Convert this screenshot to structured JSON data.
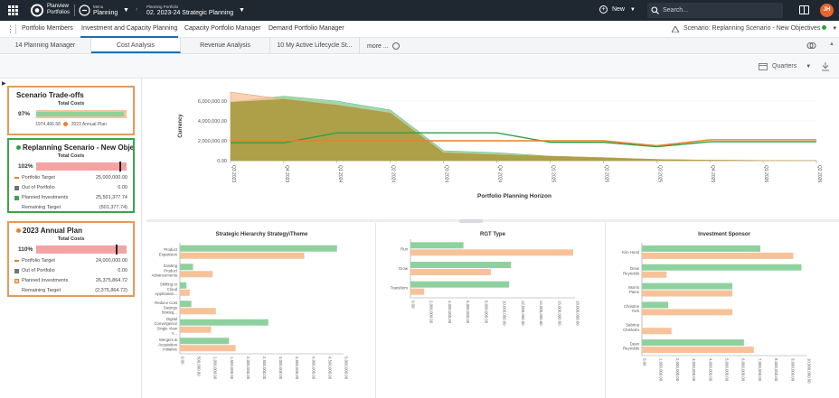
{
  "topbar": {
    "brand_line1": "Planview",
    "brand_line2": "Portfolios",
    "menu_small": "Menu",
    "menu_big": "Planning",
    "pp_small": "Planning Portfolio",
    "pp_big": "02. 2023-24 Strategic Planning",
    "new_label": "New",
    "search_placeholder": "Search...",
    "avatar_initials": "JH"
  },
  "nav_tabs": [
    {
      "label": "Portfolio Members"
    },
    {
      "label": "Investment and Capacity Planning"
    },
    {
      "label": "Capacity Portfolio Manager"
    },
    {
      "label": "Demand Portfolio Manager"
    }
  ],
  "scenario_label": "Scenario: Replanning Scenario - New Objectives",
  "sub_tabs": [
    {
      "label": "14 Planning Manager"
    },
    {
      "label": "Cost Analysis"
    },
    {
      "label": "Revenue Analysis"
    },
    {
      "label": "10 My Active Lifecycle St..."
    }
  ],
  "more_label": "more ...",
  "toolbar": {
    "period_label": "Quarters"
  },
  "cards": [
    {
      "title": "Scenario Trade-offs",
      "subtitle": "Total Costs",
      "pct": "97%",
      "legend_value": "1974,466.58",
      "legend_label": "2023 Annual Plan",
      "border": "#e89a58"
    },
    {
      "title": "Replanning Scenario - New Objec...",
      "subtitle": "Total Costs",
      "pct": "102%",
      "border": "#3aa54a",
      "rows": [
        {
          "label": "Portfolio Target",
          "value": "25,000,000.00"
        },
        {
          "label": "Out of Portfolio",
          "value": "0.00"
        },
        {
          "label": "Planned Investments",
          "value": "25,501,377.74"
        },
        {
          "label": "Remaining Target",
          "value": "(501,377.74)"
        }
      ]
    },
    {
      "title": "2023 Annual Plan",
      "subtitle": "Total Costs",
      "pct": "110%",
      "border": "#e89a58",
      "rows": [
        {
          "label": "Portfolio Target",
          "value": "24,000,000.00"
        },
        {
          "label": "Out of Portfolio",
          "value": "0.00"
        },
        {
          "label": "Planned Investments",
          "value": "26,375,864.72"
        },
        {
          "label": "Remaining Target",
          "value": "(2,375,864.72)"
        }
      ]
    }
  ],
  "colors": {
    "green": "#8fd19e",
    "green_dark": "#2ea043",
    "orange": "#f7c29a",
    "orange_dark": "#e8802a",
    "olive": "#a89a3f",
    "red_bar": "#f4a3a3"
  },
  "chart_data": [
    {
      "type": "area",
      "title": "",
      "xlabel": "Portfolio Planning Horizon",
      "ylabel": "Currency",
      "x": [
        "Q3 2023",
        "Q4 2023",
        "Q1 2024",
        "Q2 2024",
        "Q3 2024",
        "Q4 2024",
        "Q1 2025",
        "Q2 2025",
        "Q3 2025",
        "Q4 2025",
        "Q1 2026",
        "Q2 2026"
      ],
      "y_ticks": [
        "0.00",
        "2,000,000.00",
        "4,000,000.00",
        "6,000,000.00"
      ],
      "ylim": [
        0,
        7000000
      ],
      "series": [
        {
          "values": [
            5900000,
            6500000,
            6000000,
            5100000,
            1000000,
            800000,
            450000,
            300000,
            120000,
            50000,
            20000,
            10000
          ]
        },
        {
          "values": [
            6900000,
            6200000,
            5600000,
            4800000,
            800000,
            600000,
            450000,
            300000,
            120000,
            50000,
            20000,
            10000
          ]
        },
        {
          "values": [
            1800000,
            1800000,
            2800000,
            2800000,
            2800000,
            2800000,
            1850000,
            1850000,
            1400000,
            1900000,
            1900000,
            1900000
          ]
        },
        {
          "values": [
            2000000,
            2000000,
            2000000,
            2000000,
            2000000,
            2000000,
            2000000,
            2000000,
            1500000,
            2100000,
            2100000,
            2100000
          ]
        }
      ]
    },
    {
      "type": "bar",
      "title": "Strategic Hierarchy Strategy\\Theme",
      "categories": [
        "Product Expansion",
        "Existing Product Advancements",
        "Shifting to Cloud Application...",
        "Reduce Cost Savings Strateg...",
        "Digital Convergence Single View o...",
        "Mergers & Acquisition Initiative"
      ],
      "x_ticks": [
        "0.00",
        "500,000.00",
        "1,000,000.00",
        "1,500,000.00",
        "2,000,000.00",
        "2,500,000.00",
        "3,000,000.00",
        "3,500,000.00",
        "4,000,000.00",
        "4,500,000.00",
        "5,000,000.00"
      ],
      "xlim": [
        0,
        5000000
      ],
      "series": [
        {
          "values": [
            4800000,
            400000,
            200000,
            350000,
            2700000,
            1500000
          ]
        },
        {
          "values": [
            3800000,
            1000000,
            300000,
            1100000,
            950000,
            1700000
          ]
        }
      ]
    },
    {
      "type": "bar",
      "title": "RGT Type",
      "categories": [
        "Run",
        "Grow",
        "Transform"
      ],
      "x_ticks": [
        "0.00",
        "2,000,000.00",
        "4,000,000.00",
        "6,000,000.00",
        "8,000,000.00",
        "10,000,000.00",
        "12,000,000.00",
        "14,000,000.00",
        "16,000,000.00",
        "18,000,000.00"
      ],
      "xlim": [
        0,
        18000000
      ],
      "series": [
        {
          "values": [
            5800000,
            11000000,
            10800000
          ]
        },
        {
          "values": [
            17800000,
            8800000,
            1500000
          ]
        }
      ]
    },
    {
      "type": "bar",
      "title": "Investment Sponsor",
      "categories": [
        "Kim Hood",
        "Drew Reynolds",
        "Morris Paine",
        "Christine York",
        "Sabrina Chisholm",
        "Dean Reynolds"
      ],
      "x_ticks": [
        "0.00",
        "1,000,000.00",
        "2,000,000.00",
        "3,000,000.00",
        "4,000,000.00",
        "5,000,000.00",
        "6,000,000.00",
        "7,000,000.00",
        "8,000,000.00",
        "9,000,000.00",
        "10,000,000.00"
      ],
      "xlim": [
        0,
        10000000
      ],
      "series": [
        {
          "values": [
            7200000,
            9700000,
            5500000,
            1600000,
            0,
            6200000
          ]
        },
        {
          "values": [
            9200000,
            1500000,
            5500000,
            5500000,
            1800000,
            6800000
          ]
        }
      ]
    }
  ]
}
